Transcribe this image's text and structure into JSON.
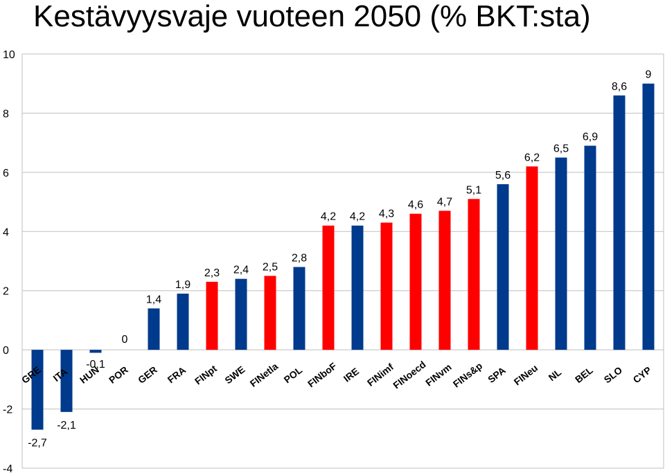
{
  "chart_data": {
    "type": "bar",
    "title": "Kestävyysvaje vuoteen 2050 (% BKT:sta)",
    "xlabel": "",
    "ylabel": "",
    "ylim": [
      -4,
      10
    ],
    "yticks": [
      -4,
      -2,
      0,
      2,
      4,
      6,
      8,
      10
    ],
    "grid": true,
    "legend": "none",
    "categories": [
      "GRE",
      "ITA",
      "HUN",
      "POR",
      "GER",
      "FRA",
      "FINpt",
      "SWE",
      "FINetla",
      "POL",
      "FINboF",
      "IRE",
      "FINimf",
      "FINoecd",
      "FINvm",
      "FINs&p",
      "SPA",
      "FINeu",
      "NL",
      "BEL",
      "SLO",
      "CYP"
    ],
    "values": [
      -2.7,
      -2.1,
      -0.1,
      0,
      1.4,
      1.9,
      2.3,
      2.4,
      2.5,
      2.8,
      4.2,
      4.2,
      4.3,
      4.6,
      4.7,
      5.1,
      5.6,
      6.2,
      6.5,
      6.9,
      8.6,
      9
    ],
    "value_labels": [
      "-2,7",
      "-2,1",
      "-0,1",
      "0",
      "1,4",
      "1,9",
      "2,3",
      "2,4",
      "2,5",
      "2,8",
      "4,2",
      "4,2",
      "4,3",
      "4,6",
      "4,7",
      "5,1",
      "5,6",
      "6,2",
      "6,5",
      "6,9",
      "8,6",
      "9"
    ],
    "highlight": [
      false,
      false,
      false,
      false,
      false,
      false,
      true,
      false,
      true,
      false,
      true,
      false,
      true,
      true,
      true,
      true,
      false,
      true,
      false,
      false,
      false,
      false
    ],
    "colors": {
      "country": "#003a8c",
      "finland_estimate": "#ff0000",
      "grid": "#bfbfbf"
    }
  }
}
